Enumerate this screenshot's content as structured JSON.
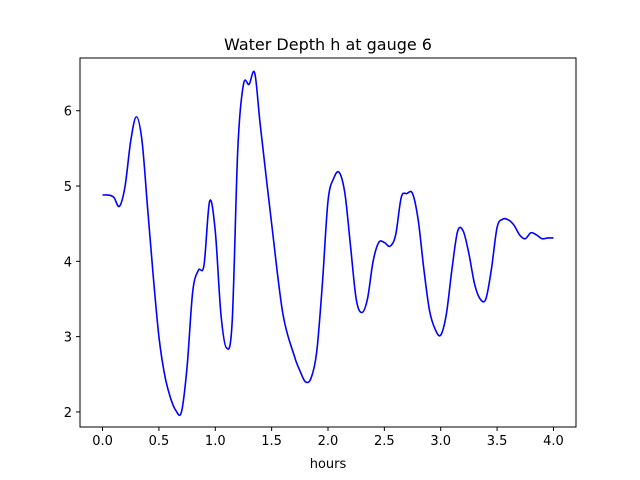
{
  "chart_data": {
    "type": "line",
    "title": "Water Depth h at gauge 6",
    "xlabel": "hours",
    "ylabel": "",
    "xlim": [
      -0.2,
      4.2
    ],
    "ylim": [
      1.8,
      6.7
    ],
    "xticks": [
      0.0,
      0.5,
      1.0,
      1.5,
      2.0,
      2.5,
      3.0,
      3.5,
      4.0
    ],
    "xtick_labels": [
      "0.0",
      "0.5",
      "1.0",
      "1.5",
      "2.0",
      "2.5",
      "3.0",
      "3.5",
      "4.0"
    ],
    "yticks": [
      2,
      3,
      4,
      5,
      6
    ],
    "ytick_labels": [
      "2",
      "3",
      "4",
      "5",
      "6"
    ],
    "grid": false,
    "series": [
      {
        "color": "#0000ff",
        "x": [
          0.0,
          0.05,
          0.1,
          0.15,
          0.2,
          0.25,
          0.3,
          0.35,
          0.4,
          0.45,
          0.5,
          0.55,
          0.6,
          0.65,
          0.7,
          0.75,
          0.8,
          0.85,
          0.9,
          0.95,
          1.0,
          1.05,
          1.1,
          1.15,
          1.2,
          1.25,
          1.3,
          1.35,
          1.4,
          1.5,
          1.6,
          1.7,
          1.75,
          1.8,
          1.85,
          1.9,
          1.95,
          2.0,
          2.05,
          2.1,
          2.15,
          2.2,
          2.25,
          2.3,
          2.35,
          2.4,
          2.45,
          2.5,
          2.55,
          2.6,
          2.65,
          2.7,
          2.75,
          2.8,
          2.85,
          2.9,
          2.95,
          3.0,
          3.05,
          3.1,
          3.15,
          3.2,
          3.25,
          3.3,
          3.35,
          3.4,
          3.45,
          3.5,
          3.55,
          3.6,
          3.65,
          3.7,
          3.75,
          3.8,
          3.85,
          3.9,
          3.95,
          4.0
        ],
        "y": [
          4.88,
          4.88,
          4.85,
          4.73,
          5.0,
          5.6,
          5.92,
          5.6,
          4.7,
          3.8,
          3.0,
          2.5,
          2.2,
          2.02,
          2.0,
          2.6,
          3.6,
          3.88,
          3.95,
          4.8,
          4.4,
          3.3,
          2.85,
          3.2,
          5.5,
          6.35,
          6.35,
          6.5,
          5.8,
          4.5,
          3.3,
          2.75,
          2.55,
          2.4,
          2.45,
          2.8,
          3.7,
          4.8,
          5.1,
          5.18,
          4.9,
          4.2,
          3.5,
          3.32,
          3.5,
          4.0,
          4.25,
          4.25,
          4.2,
          4.35,
          4.85,
          4.9,
          4.9,
          4.55,
          3.9,
          3.35,
          3.1,
          3.02,
          3.3,
          3.9,
          4.4,
          4.4,
          4.1,
          3.7,
          3.5,
          3.5,
          3.9,
          4.45,
          4.56,
          4.55,
          4.48,
          4.35,
          4.3,
          4.38,
          4.35,
          4.3,
          4.31,
          4.31
        ]
      }
    ]
  }
}
